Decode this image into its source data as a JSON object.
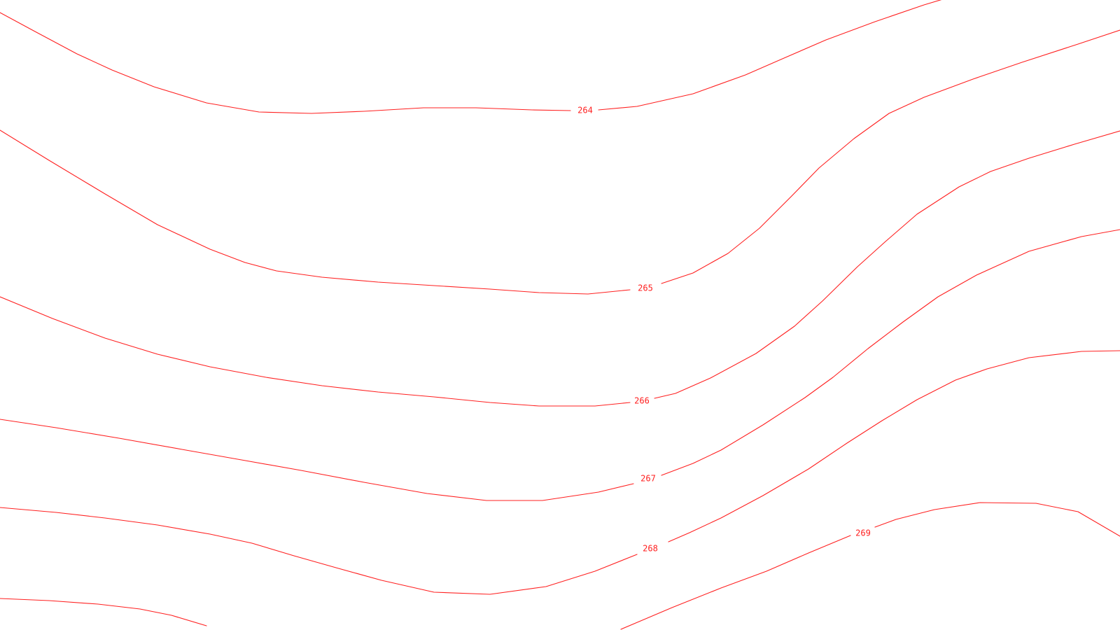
{
  "map": {
    "line_color": "#ff2020",
    "label_color": "#ff2020",
    "background": "#ffffff"
  },
  "contours": [
    {
      "id": "264",
      "label": "264"
    },
    {
      "id": "265",
      "label": "265"
    },
    {
      "id": "266",
      "label": "266"
    },
    {
      "id": "267",
      "label": "267"
    },
    {
      "id": "268",
      "label": "268"
    },
    {
      "id": "269",
      "label": "269"
    },
    {
      "id": "unlabeled-lower-left",
      "label": ""
    }
  ]
}
